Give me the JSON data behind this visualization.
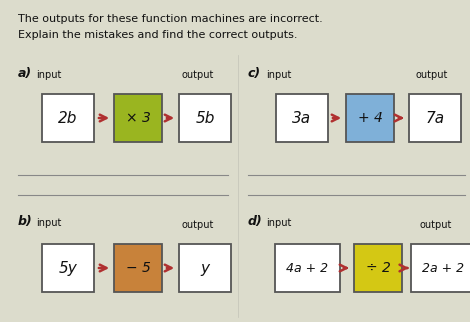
{
  "title_line1": "The outputs for these function machines are incorrect.",
  "title_line2": "Explain the mistakes and find the correct outputs.",
  "bg_color": "#dcdccc",
  "sections": {
    "a": {
      "label": "a)",
      "input_text": "2b",
      "op_text": "× 3",
      "output_text": "5b",
      "op_color": "#9ab520"
    },
    "b": {
      "label": "b)",
      "input_text": "5y",
      "op_text": "− 5",
      "output_text": "y",
      "op_color": "#c8823a"
    },
    "c": {
      "label": "c)",
      "input_text": "3a",
      "op_text": "+ 4",
      "output_text": "7a",
      "op_color": "#7fb0d8"
    },
    "d": {
      "label": "d)",
      "input_text": "4a + 2",
      "op_text": "÷ 2",
      "output_text": "2a + 2",
      "op_color": "#d4c814"
    }
  },
  "arrow_color": "#b03030",
  "box_edge_color": "#555555",
  "text_color": "#111111",
  "line_color": "#888888",
  "white": "#ffffff"
}
